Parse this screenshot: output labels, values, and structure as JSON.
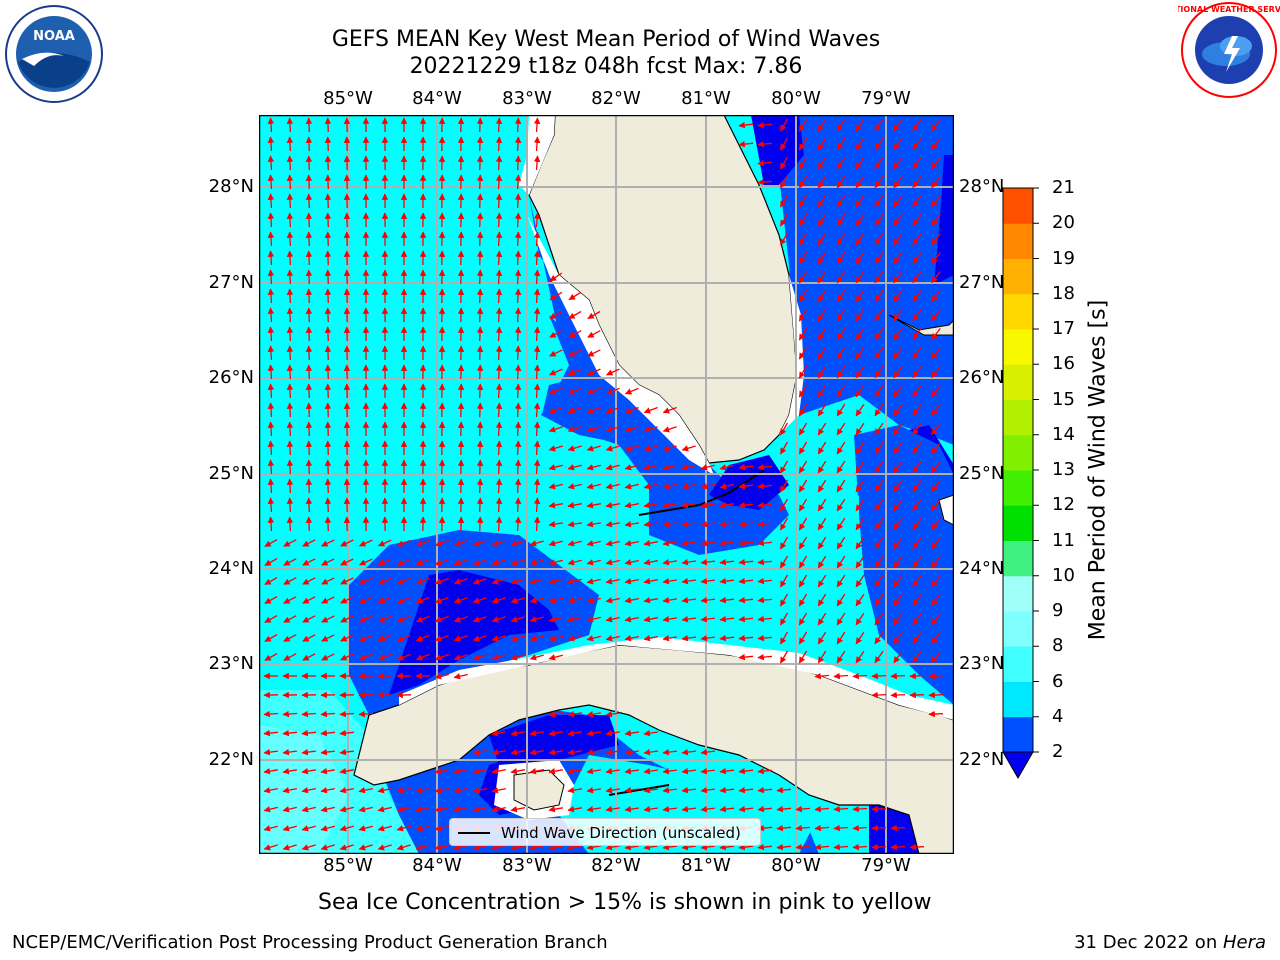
{
  "title_line1": "GEFS MEAN Key West Mean Period of Wind Waves",
  "title_line2": "20221229 t18z 048h fcst   Max: 7.86",
  "lon_labels": [
    "85°W",
    "84°W",
    "83°W",
    "82°W",
    "81°W",
    "80°W",
    "79°W"
  ],
  "lat_labels": [
    "28°N",
    "27°N",
    "26°N",
    "25°N",
    "24°N",
    "23°N",
    "22°N"
  ],
  "colorbar": {
    "label": "Mean Period of Wind Waves [s]",
    "ticks": [
      "2",
      "4",
      "6",
      "8",
      "9",
      "10",
      "11",
      "12",
      "13",
      "14",
      "15",
      "16",
      "17",
      "18",
      "19",
      "20",
      "21"
    ],
    "colors": [
      "#0050ff",
      "#00e8ff",
      "#40ffff",
      "#80ffff",
      "#a0fff8",
      "#40f080",
      "#00e000",
      "#40f000",
      "#80f000",
      "#b0f000",
      "#d8f000",
      "#f8f800",
      "#ffd800",
      "#ffb000",
      "#ff8800",
      "#ff5000",
      "#ff2000",
      "#ff0000"
    ]
  },
  "legend_label": "Wind Wave Direction (unscaled)",
  "ice_note": "Sea Ice Concentration > 15% is shown in pink to yellow",
  "footer_left": "NCEP/EMC/Verification Post Processing Product Generation Branch",
  "footer_right_date": "31 Dec 2022 on ",
  "footer_right_host": "Hera",
  "logos": {
    "noaa_text": "NOAA",
    "nws_text": "NATIONAL WEATHER SERVICE"
  },
  "colors": {
    "land": "#efecdc",
    "deep": "#0000ee",
    "mid": "#0050ff",
    "light": "#00ffff",
    "pale": "#40ffff",
    "arrow": "#ff0000",
    "grid": "#b0b0b0"
  }
}
